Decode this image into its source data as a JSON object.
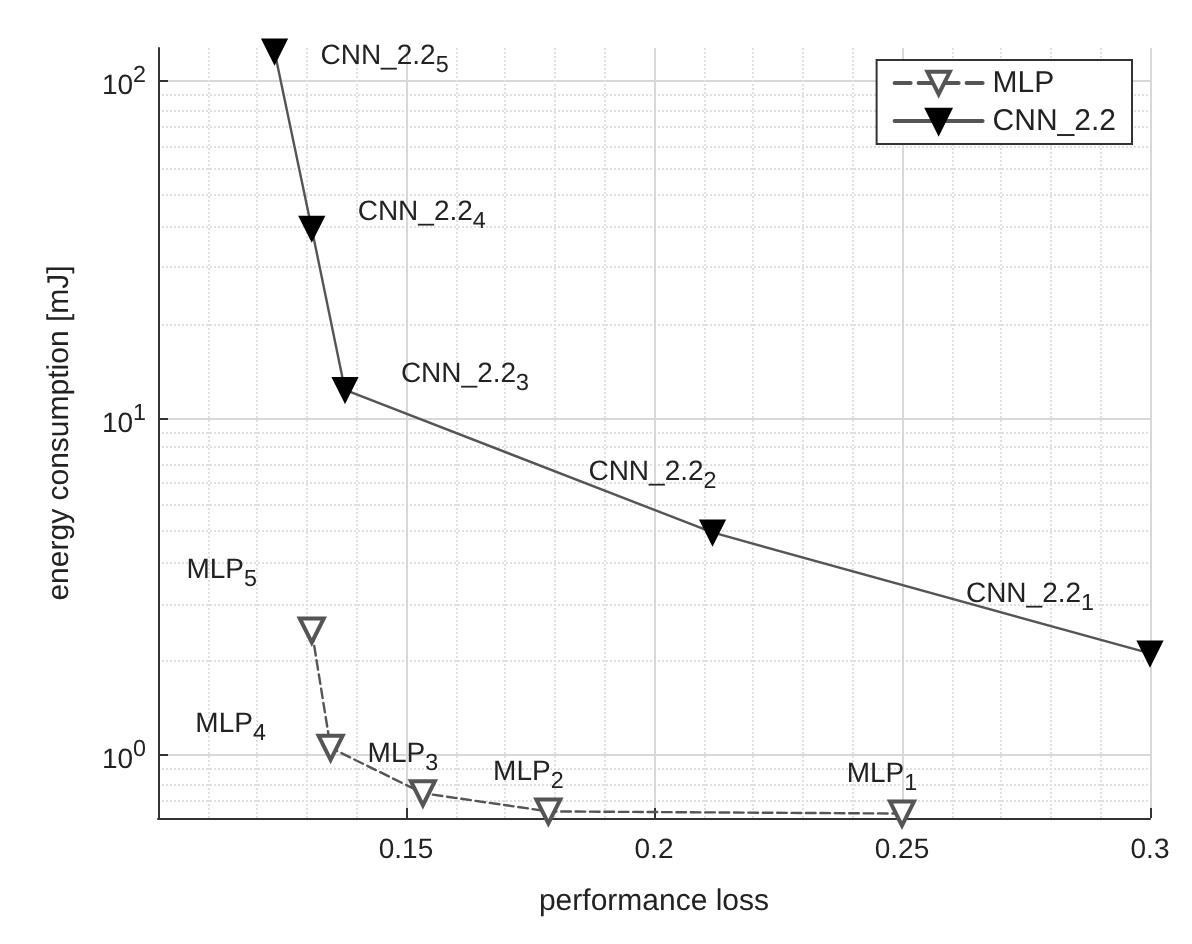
{
  "chart_data": {
    "type": "line",
    "xlabel": "performance loss",
    "ylabel": "energy consumption [mJ]",
    "log": "y",
    "grid": true,
    "legend": "top right",
    "marker": "triangle",
    "xlim": [
      0.1,
      0.3
    ],
    "xticks": [
      {
        "value": 0.1,
        "label": null
      },
      0.15,
      0.2,
      0.25,
      0.3
    ],
    "ylim": [
      0.65,
      125
    ],
    "yticks": [
      {
        "value": 1,
        "label": "10$^{0}$"
      },
      {
        "value": 10,
        "label": "10$^{1}$"
      },
      {
        "value": 100,
        "label": "10$^{2}$"
      }
    ],
    "series": [
      {
        "name": "MLP",
        "color": "#555555",
        "line_style": "dashed",
        "x": [
          0.25,
          0.1787,
          0.1534,
          0.1348,
          0.131
        ],
        "values": [
          0.67,
          0.68,
          0.77,
          1.05,
          2.34
        ]
      },
      {
        "name": "CNN_2.2",
        "color": "#555555",
        "line_style": "solid",
        "x": [
          0.3,
          0.2118,
          0.1377,
          0.131,
          0.1235
        ],
        "values": [
          2.0,
          4.57,
          12.1,
          36.4,
          122
        ]
      }
    ],
    "annotations": [
      {
        "text": "MLP$_{1}$",
        "x": 0.25,
        "y": 0.67
      },
      {
        "text": "MLP$_{2}$",
        "x": 0.1787,
        "y": 0.68
      },
      {
        "text": "MLP$_{3}$",
        "x": 0.1534,
        "y": 0.77
      },
      {
        "text": "MLP$_{4}$",
        "x": 0.1348,
        "y": 1.05
      },
      {
        "text": "MLP$_{5}$",
        "x": 0.131,
        "y": 2.34
      },
      {
        "text": "CNN_2.2$_{1}$",
        "x": 0.3,
        "y": 2.0
      },
      {
        "text": "CNN_2.2$_{2}$",
        "x": 0.2118,
        "y": 4.57
      },
      {
        "text": "CNN_2.2$_{3}$",
        "x": 0.1377,
        "y": 12.1
      },
      {
        "text": "CNN_2.2$_{4}$",
        "x": 0.131,
        "y": 36.4
      },
      {
        "text": "CNN_2.2$_{5}$",
        "x": 0.1235,
        "y": 122
      }
    ]
  }
}
